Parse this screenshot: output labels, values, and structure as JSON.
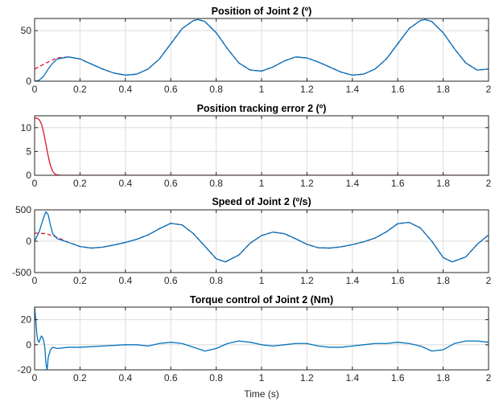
{
  "figure": {
    "xlabel": "Time (s)"
  },
  "colors": {
    "measured": "#0072bd",
    "reference": "#e5142a",
    "grid": "#dcdcdc",
    "axes": "#262626"
  },
  "chart_data": [
    {
      "type": "line",
      "title": "Position of Joint 2 (º)",
      "xlim": [
        0,
        2
      ],
      "ylim": [
        0,
        62
      ],
      "xticks": [
        0,
        0.2,
        0.4,
        0.6,
        0.8,
        1,
        1.2,
        1.4,
        1.6,
        1.8,
        2
      ],
      "xtick_labels": [
        "0",
        "0.2",
        "0.4",
        "0.6",
        "0.8",
        "1",
        "1.2",
        "1.4",
        "1.6",
        "1.8",
        "2"
      ],
      "yticks": [
        0,
        50
      ],
      "ytick_labels": [
        "0",
        "50"
      ],
      "grid": true,
      "series": [
        {
          "color": "#e5142a",
          "dashed": true,
          "x": [
            0,
            0.05,
            0.1,
            0.15,
            0.2,
            0.25,
            0.3,
            0.35,
            0.4,
            0.45,
            0.5,
            0.55,
            0.6,
            0.65,
            0.7,
            0.72,
            0.75,
            0.8,
            0.85,
            0.9,
            0.95,
            1.0,
            1.05,
            1.1,
            1.15,
            1.2,
            1.25,
            1.3,
            1.35,
            1.4,
            1.45,
            1.5,
            1.55,
            1.6,
            1.65,
            1.7,
            1.72,
            1.75,
            1.8,
            1.85,
            1.9,
            1.95,
            2.0
          ],
          "y": [
            12,
            18,
            23,
            24,
            22,
            17,
            12,
            8,
            6,
            7,
            12,
            22,
            37,
            52,
            60,
            61,
            59,
            48,
            32,
            18,
            11,
            10,
            14,
            20,
            24,
            23,
            19,
            14,
            9,
            6,
            7,
            12,
            22,
            37,
            52,
            60,
            61,
            59,
            48,
            32,
            18,
            11,
            12
          ]
        },
        {
          "color": "#0072bd",
          "dashed": false,
          "x": [
            0,
            0.02,
            0.04,
            0.06,
            0.08,
            0.1,
            0.15,
            0.2,
            0.25,
            0.3,
            0.35,
            0.4,
            0.45,
            0.5,
            0.55,
            0.6,
            0.65,
            0.7,
            0.72,
            0.75,
            0.8,
            0.85,
            0.9,
            0.95,
            1.0,
            1.05,
            1.1,
            1.15,
            1.2,
            1.25,
            1.3,
            1.35,
            1.4,
            1.45,
            1.5,
            1.55,
            1.6,
            1.65,
            1.7,
            1.72,
            1.75,
            1.8,
            1.85,
            1.9,
            1.95,
            2.0
          ],
          "y": [
            0,
            1,
            5,
            12,
            18,
            22,
            24,
            22,
            17,
            12,
            8,
            6,
            7,
            12,
            22,
            37,
            52,
            60,
            61,
            59,
            48,
            32,
            18,
            11,
            10,
            14,
            20,
            24,
            23,
            19,
            14,
            9,
            6,
            7,
            12,
            22,
            37,
            52,
            60,
            61,
            59,
            48,
            32,
            18,
            11,
            12
          ]
        }
      ]
    },
    {
      "type": "line",
      "title": "Position tracking error 2 (º)",
      "xlim": [
        0,
        2
      ],
      "ylim": [
        0,
        12.5
      ],
      "xticks": [
        0,
        0.2,
        0.4,
        0.6,
        0.8,
        1,
        1.2,
        1.4,
        1.6,
        1.8,
        2
      ],
      "xtick_labels": [
        "0",
        "0.2",
        "0.4",
        "0.6",
        "0.8",
        "1",
        "1.2",
        "1.4",
        "1.6",
        "1.8",
        "2"
      ],
      "yticks": [
        0,
        5,
        10
      ],
      "ytick_labels": [
        "0",
        "5",
        "10"
      ],
      "grid": true,
      "series": [
        {
          "color": "#e5142a",
          "dashed": false,
          "x": [
            0,
            0.01,
            0.02,
            0.03,
            0.04,
            0.05,
            0.06,
            0.07,
            0.08,
            0.09,
            0.1,
            0.12,
            0.2,
            0.5,
            1.0,
            1.5,
            2.0
          ],
          "y": [
            12,
            12,
            11.7,
            10.8,
            9,
            6.5,
            4,
            2,
            0.8,
            0.25,
            0.05,
            0,
            0,
            0,
            0,
            0,
            0
          ]
        }
      ]
    },
    {
      "type": "line",
      "title": "Speed of Joint 2 (º/s)",
      "xlim": [
        0,
        2
      ],
      "ylim": [
        -500,
        500
      ],
      "xticks": [
        0,
        0.2,
        0.4,
        0.6,
        0.8,
        1,
        1.2,
        1.4,
        1.6,
        1.8,
        2
      ],
      "xtick_labels": [
        "0",
        "0.2",
        "0.4",
        "0.6",
        "0.8",
        "1",
        "1.2",
        "1.4",
        "1.6",
        "1.8",
        "2"
      ],
      "yticks": [
        -500,
        0,
        500
      ],
      "ytick_labels": [
        "-500",
        "0",
        "500"
      ],
      "grid": true,
      "series": [
        {
          "color": "#e5142a",
          "dashed": true,
          "x": [
            0,
            0.05,
            0.1,
            0.15,
            0.2,
            0.25,
            0.3,
            0.35,
            0.4,
            0.45,
            0.5,
            0.55,
            0.6,
            0.65,
            0.7,
            0.75,
            0.8,
            0.84,
            0.9,
            0.95,
            1.0,
            1.05,
            1.1,
            1.15,
            1.2,
            1.25,
            1.3,
            1.35,
            1.4,
            1.45,
            1.5,
            1.55,
            1.6,
            1.65,
            1.7,
            1.75,
            1.8,
            1.84,
            1.9,
            1.95,
            2.0
          ],
          "y": [
            130,
            120,
            60,
            -20,
            -85,
            -110,
            -95,
            -60,
            -20,
            30,
            100,
            200,
            285,
            260,
            120,
            -80,
            -280,
            -330,
            -220,
            -30,
            90,
            145,
            120,
            40,
            -50,
            -105,
            -110,
            -90,
            -55,
            -10,
            50,
            150,
            280,
            300,
            210,
            0,
            -260,
            -330,
            -250,
            -50,
            100
          ]
        },
        {
          "color": "#0072bd",
          "dashed": false,
          "x": [
            0,
            0.02,
            0.04,
            0.05,
            0.06,
            0.07,
            0.08,
            0.1,
            0.15,
            0.2,
            0.25,
            0.3,
            0.35,
            0.4,
            0.45,
            0.5,
            0.55,
            0.6,
            0.65,
            0.7,
            0.75,
            0.8,
            0.84,
            0.9,
            0.95,
            1.0,
            1.05,
            1.1,
            1.15,
            1.2,
            1.25,
            1.3,
            1.35,
            1.4,
            1.45,
            1.5,
            1.55,
            1.6,
            1.65,
            1.7,
            1.75,
            1.8,
            1.84,
            1.9,
            1.95,
            2.0
          ],
          "y": [
            0,
            150,
            380,
            470,
            420,
            250,
            120,
            40,
            -20,
            -85,
            -110,
            -95,
            -60,
            -20,
            30,
            100,
            200,
            285,
            260,
            120,
            -80,
            -280,
            -330,
            -220,
            -30,
            90,
            145,
            120,
            40,
            -50,
            -105,
            -110,
            -90,
            -55,
            -10,
            50,
            150,
            280,
            300,
            210,
            0,
            -260,
            -330,
            -250,
            -50,
            100
          ]
        }
      ]
    },
    {
      "type": "line",
      "title": "Torque control of Joint 2 (Nm)",
      "xlim": [
        0,
        2
      ],
      "ylim": [
        -20,
        30
      ],
      "xticks": [
        0,
        0.2,
        0.4,
        0.6,
        0.8,
        1,
        1.2,
        1.4,
        1.6,
        1.8,
        2
      ],
      "xtick_labels": [
        "0",
        "0.2",
        "0.4",
        "0.6",
        "0.8",
        "1",
        "1.2",
        "1.4",
        "1.6",
        "1.8",
        "2"
      ],
      "yticks": [
        -20,
        0,
        20
      ],
      "ytick_labels": [
        "-20",
        "0",
        "20"
      ],
      "grid": true,
      "series": [
        {
          "color": "#0072bd",
          "dashed": false,
          "x": [
            0,
            0.005,
            0.01,
            0.015,
            0.02,
            0.025,
            0.03,
            0.035,
            0.04,
            0.045,
            0.05,
            0.055,
            0.06,
            0.07,
            0.08,
            0.1,
            0.15,
            0.2,
            0.3,
            0.4,
            0.45,
            0.5,
            0.55,
            0.6,
            0.65,
            0.7,
            0.75,
            0.8,
            0.85,
            0.9,
            0.95,
            1.0,
            1.05,
            1.1,
            1.15,
            1.2,
            1.25,
            1.3,
            1.35,
            1.4,
            1.45,
            1.5,
            1.55,
            1.6,
            1.65,
            1.7,
            1.75,
            1.8,
            1.85,
            1.9,
            1.95,
            2.0
          ],
          "y": [
            30,
            20,
            8,
            3,
            2,
            5,
            7,
            6,
            3,
            -2,
            -15,
            -20,
            -10,
            -4,
            -2,
            -3,
            -2,
            -2,
            -1,
            0,
            0,
            -1,
            1,
            2,
            1,
            -2,
            -5,
            -3,
            1,
            3,
            2,
            0,
            -1,
            0,
            1,
            1,
            -1,
            -2,
            -2,
            -1,
            0,
            1,
            1,
            2,
            1,
            -1,
            -5,
            -4,
            1,
            3,
            3,
            2
          ]
        }
      ]
    }
  ]
}
